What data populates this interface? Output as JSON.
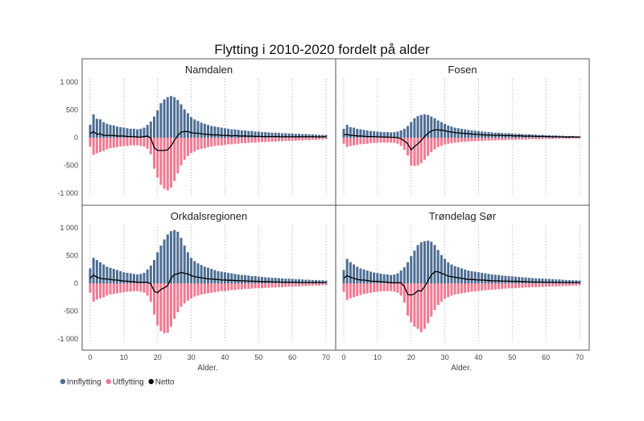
{
  "chart_data": {
    "type": "bar",
    "title": "Flytting i 2010-2020 fordelt på alder",
    "xlabel": "Alder.",
    "ylabel": "",
    "xlim": [
      0,
      70
    ],
    "ylim": [
      -1000,
      1000
    ],
    "xticks": [
      0,
      10,
      20,
      30,
      40,
      50,
      60,
      70
    ],
    "yticks": [
      1000,
      500,
      0,
      -500,
      -1000
    ],
    "ytick_labels": [
      "1 000",
      "500",
      "0",
      "-500",
      "-1 000"
    ],
    "grid": "vertical dotted at every 10 years",
    "legend_position": "bottom-left",
    "legend": [
      {
        "name": "Innflytting",
        "color": "#4e6e94",
        "marker": "dot"
      },
      {
        "name": "Utflytting",
        "color": "#f07a93",
        "marker": "dot"
      },
      {
        "name": "Netto",
        "color": "#000000",
        "marker": "dot"
      }
    ],
    "colors": {
      "innflytting": "#4e6e94",
      "utflytting": "#f07a93",
      "netto": "#000000"
    },
    "x": [
      0,
      1,
      2,
      3,
      4,
      5,
      6,
      7,
      8,
      9,
      10,
      11,
      12,
      13,
      14,
      15,
      16,
      17,
      18,
      19,
      20,
      21,
      22,
      23,
      24,
      25,
      26,
      27,
      28,
      29,
      30,
      31,
      32,
      33,
      34,
      35,
      36,
      37,
      38,
      39,
      40,
      41,
      42,
      43,
      44,
      45,
      46,
      47,
      48,
      49,
      50,
      51,
      52,
      53,
      54,
      55,
      56,
      57,
      58,
      59,
      60,
      61,
      62,
      63,
      64,
      65,
      66,
      67,
      68,
      69,
      70
    ],
    "panels": [
      {
        "name": "Namdalen",
        "series": [
          {
            "name": "Innflytting",
            "values": [
              230,
              420,
              340,
              330,
              280,
              250,
              230,
              220,
              200,
              190,
              180,
              170,
              160,
              160,
              150,
              160,
              180,
              230,
              290,
              380,
              490,
              620,
              690,
              730,
              750,
              730,
              680,
              600,
              510,
              440,
              370,
              330,
              300,
              270,
              250,
              230,
              210,
              200,
              190,
              180,
              170,
              160,
              150,
              150,
              140,
              130,
              130,
              120,
              120,
              110,
              110,
              100,
              100,
              95,
              90,
              90,
              85,
              80,
              80,
              75,
              75,
              70,
              70,
              65,
              65,
              60,
              60,
              55,
              50,
              50,
              50
            ]
          },
          {
            "name": "Utflytting",
            "values": [
              -160,
              -310,
              -280,
              -260,
              -240,
              -210,
              -190,
              -180,
              -170,
              -160,
              -150,
              -150,
              -140,
              -140,
              -140,
              -150,
              -160,
              -200,
              -300,
              -560,
              -720,
              -850,
              -920,
              -950,
              -900,
              -780,
              -640,
              -500,
              -400,
              -330,
              -280,
              -250,
              -220,
              -200,
              -190,
              -170,
              -160,
              -150,
              -140,
              -140,
              -130,
              -120,
              -120,
              -110,
              -110,
              -100,
              -100,
              -95,
              -90,
              -90,
              -85,
              -80,
              -80,
              -75,
              -70,
              -70,
              -65,
              -65,
              -60,
              -60,
              -55,
              -55,
              -50,
              -50,
              -45,
              -45,
              -40,
              -40,
              -35,
              -35,
              -30
            ]
          },
          {
            "name": "Netto",
            "values": [
              70,
              110,
              60,
              70,
              40,
              40,
              40,
              40,
              30,
              30,
              30,
              20,
              20,
              20,
              10,
              10,
              20,
              30,
              -10,
              -180,
              -230,
              -230,
              -230,
              -220,
              -150,
              -50,
              40,
              100,
              110,
              110,
              90,
              80,
              80,
              70,
              60,
              60,
              50,
              50,
              50,
              40,
              40,
              40,
              30,
              40,
              30,
              30,
              30,
              25,
              30,
              20,
              25,
              20,
              20,
              20,
              20,
              20,
              20,
              15,
              20,
              15,
              20,
              15,
              20,
              15,
              20,
              15,
              20,
              15,
              15,
              15,
              20
            ]
          }
        ]
      },
      {
        "name": "Fosen",
        "series": [
          {
            "name": "Innflytting",
            "values": [
              160,
              230,
              190,
              180,
              160,
              150,
              140,
              130,
              120,
              115,
              110,
              105,
              100,
              100,
              95,
              100,
              110,
              130,
              160,
              210,
              280,
              350,
              390,
              410,
              420,
              410,
              380,
              350,
              310,
              280,
              250,
              220,
              200,
              180,
              170,
              160,
              150,
              140,
              130,
              125,
              120,
              110,
              105,
              100,
              95,
              90,
              90,
              85,
              80,
              80,
              75,
              70,
              70,
              65,
              60,
              60,
              55,
              55,
              50,
              50,
              45,
              45,
              40,
              40,
              35,
              35,
              30,
              30,
              30,
              25,
              25
            ]
          },
          {
            "name": "Utflytting",
            "values": [
              -110,
              -170,
              -150,
              -140,
              -130,
              -120,
              -115,
              -110,
              -100,
              -95,
              -95,
              -90,
              -90,
              -90,
              -90,
              -95,
              -110,
              -150,
              -220,
              -320,
              -500,
              -510,
              -500,
              -460,
              -400,
              -330,
              -260,
              -210,
              -170,
              -145,
              -125,
              -110,
              -100,
              -90,
              -85,
              -80,
              -75,
              -70,
              -65,
              -65,
              -60,
              -60,
              -55,
              -55,
              -50,
              -50,
              -45,
              -45,
              -45,
              -40,
              -40,
              -40,
              -35,
              -35,
              -35,
              -30,
              -30,
              -30,
              -30,
              -25,
              -25,
              -25,
              -25,
              -20,
              -20,
              -20,
              -20,
              -20,
              -15,
              -15,
              -15
            ]
          },
          {
            "name": "Netto",
            "values": [
              50,
              60,
              40,
              40,
              30,
              30,
              25,
              20,
              20,
              20,
              15,
              15,
              10,
              10,
              5,
              5,
              0,
              -20,
              -60,
              -110,
              -220,
              -160,
              -110,
              -50,
              20,
              80,
              120,
              140,
              140,
              135,
              125,
              110,
              100,
              90,
              85,
              80,
              75,
              70,
              65,
              60,
              60,
              50,
              50,
              45,
              45,
              40,
              45,
              40,
              35,
              40,
              35,
              30,
              35,
              30,
              25,
              30,
              25,
              25,
              20,
              25,
              20,
              20,
              15,
              20,
              15,
              15,
              10,
              10,
              15,
              10,
              10
            ]
          }
        ]
      },
      {
        "name": "Orkdalsregionen",
        "series": [
          {
            "name": "Innflytting",
            "values": [
              270,
              460,
              420,
              380,
              340,
              300,
              280,
              260,
              240,
              220,
              200,
              190,
              180,
              170,
              160,
              170,
              190,
              250,
              320,
              420,
              560,
              680,
              790,
              880,
              940,
              960,
              930,
              820,
              680,
              560,
              460,
              400,
              360,
              330,
              300,
              280,
              260,
              240,
              220,
              210,
              200,
              190,
              180,
              170,
              160,
              150,
              150,
              140,
              130,
              130,
              120,
              115,
              110,
              105,
              100,
              100,
              95,
              90,
              85,
              85,
              80,
              75,
              75,
              70,
              65,
              65,
              60,
              60,
              55,
              55,
              50
            ]
          },
          {
            "name": "Utflytting",
            "values": [
              -170,
              -330,
              -290,
              -270,
              -250,
              -220,
              -200,
              -190,
              -180,
              -170,
              -160,
              -150,
              -150,
              -140,
              -140,
              -150,
              -170,
              -220,
              -330,
              -560,
              -760,
              -860,
              -900,
              -890,
              -780,
              -640,
              -520,
              -420,
              -360,
              -310,
              -270,
              -240,
              -220,
              -200,
              -190,
              -180,
              -170,
              -160,
              -150,
              -140,
              -140,
              -130,
              -120,
              -120,
              -110,
              -110,
              -100,
              -100,
              -95,
              -90,
              -90,
              -85,
              -80,
              -80,
              -75,
              -75,
              -70,
              -70,
              -65,
              -60,
              -60,
              -55,
              -55,
              -50,
              -50,
              -45,
              -45,
              -40,
              -40,
              -35,
              -35
            ]
          },
          {
            "name": "Netto",
            "values": [
              90,
              150,
              110,
              90,
              80,
              80,
              70,
              60,
              60,
              50,
              40,
              40,
              30,
              30,
              20,
              20,
              20,
              20,
              -10,
              -140,
              -170,
              -110,
              -80,
              -40,
              90,
              160,
              170,
              200,
              180,
              170,
              140,
              120,
              110,
              100,
              90,
              80,
              80,
              70,
              70,
              60,
              60,
              55,
              55,
              50,
              50,
              45,
              45,
              40,
              40,
              35,
              35,
              30,
              30,
              30,
              25,
              25,
              25,
              20,
              20,
              20,
              20,
              20,
              15,
              15,
              15,
              15,
              15,
              15,
              15,
              15,
              15
            ]
          }
        ]
      },
      {
        "name": "Trøndelag Sør",
        "series": [
          {
            "name": "Innflytting",
            "values": [
              240,
              440,
              380,
              340,
              300,
              270,
              250,
              230,
              210,
              195,
              185,
              175,
              165,
              160,
              150,
              160,
              180,
              230,
              290,
              380,
              490,
              590,
              690,
              740,
              760,
              770,
              750,
              690,
              600,
              510,
              440,
              380,
              340,
              310,
              290,
              270,
              250,
              230,
              220,
              210,
              200,
              190,
              180,
              170,
              160,
              155,
              150,
              140,
              135,
              130,
              125,
              120,
              115,
              110,
              105,
              100,
              95,
              90,
              90,
              85,
              80,
              80,
              75,
              70,
              70,
              65,
              60,
              60,
              55,
              55,
              50
            ]
          },
          {
            "name": "Utflytting",
            "values": [
              -150,
              -300,
              -270,
              -250,
              -230,
              -210,
              -190,
              -180,
              -170,
              -160,
              -150,
              -145,
              -140,
              -140,
              -140,
              -150,
              -170,
              -220,
              -350,
              -580,
              -700,
              -780,
              -820,
              -880,
              -820,
              -720,
              -600,
              -480,
              -390,
              -330,
              -280,
              -250,
              -220,
              -200,
              -190,
              -180,
              -170,
              -160,
              -150,
              -145,
              -140,
              -130,
              -125,
              -120,
              -115,
              -110,
              -105,
              -100,
              -95,
              -90,
              -90,
              -85,
              -80,
              -80,
              -75,
              -75,
              -70,
              -70,
              -65,
              -65,
              -60,
              -60,
              -55,
              -55,
              -50,
              -50,
              -45,
              -45,
              -40,
              -40,
              -35
            ]
          },
          {
            "name": "Netto",
            "values": [
              90,
              140,
              110,
              90,
              70,
              60,
              60,
              50,
              40,
              35,
              35,
              30,
              25,
              20,
              10,
              10,
              10,
              10,
              -60,
              -200,
              -210,
              -190,
              -130,
              -140,
              -60,
              50,
              150,
              210,
              210,
              180,
              160,
              130,
              120,
              110,
              100,
              90,
              80,
              70,
              70,
              65,
              60,
              60,
              55,
              50,
              45,
              45,
              45,
              40,
              40,
              40,
              35,
              35,
              35,
              30,
              30,
              25,
              25,
              20,
              25,
              20,
              20,
              20,
              20,
              15,
              20,
              15,
              15,
              15,
              15,
              15,
              15
            ]
          }
        ]
      }
    ]
  }
}
